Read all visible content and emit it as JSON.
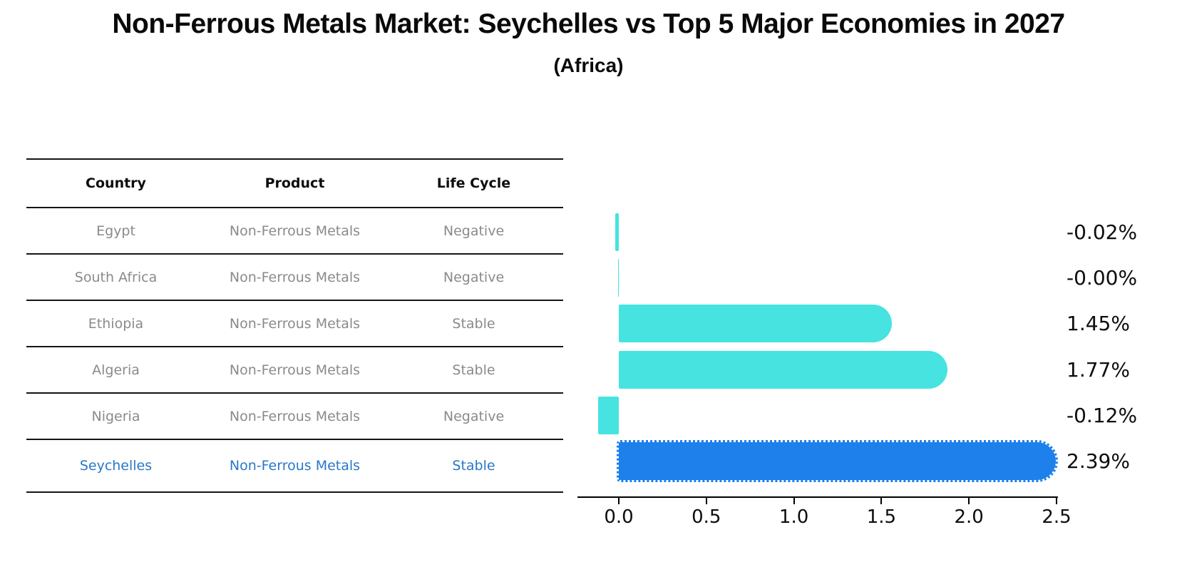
{
  "title": "Non-Ferrous Metals Market: Seychelles vs Top 5 Major Economies in 2027",
  "subtitle": "(Africa)",
  "table": {
    "headers": [
      "Country",
      "Product",
      "Life Cycle"
    ],
    "rows": [
      {
        "country": "Egypt",
        "product": "Non-Ferrous Metals",
        "life_cycle": "Negative",
        "highlight": false
      },
      {
        "country": "South Africa",
        "product": "Non-Ferrous Metals",
        "life_cycle": "Negative",
        "highlight": false
      },
      {
        "country": "Ethiopia",
        "product": "Non-Ferrous Metals",
        "life_cycle": "Stable",
        "highlight": false
      },
      {
        "country": "Algeria",
        "product": "Non-Ferrous Metals",
        "life_cycle": "Stable",
        "highlight": false
      },
      {
        "country": "Nigeria",
        "product": "Non-Ferrous Metals",
        "life_cycle": "Negative",
        "highlight": false
      },
      {
        "country": "Seychelles",
        "product": "Non-Ferrous Metals",
        "life_cycle": "Stable",
        "highlight": true
      }
    ]
  },
  "chart_data": {
    "type": "bar",
    "orientation": "horizontal",
    "categories": [
      "Egypt",
      "South Africa",
      "Ethiopia",
      "Algeria",
      "Nigeria",
      "Seychelles"
    ],
    "values": [
      -0.02,
      -0.0,
      1.45,
      1.77,
      -0.12,
      2.39
    ],
    "value_labels": [
      "-0.02%",
      "-0.00%",
      "1.45%",
      "1.77%",
      "-0.12%",
      "2.39%"
    ],
    "highlight_index": 5,
    "xticks": [
      "0.0",
      "0.5",
      "1.0",
      "1.5",
      "2.0",
      "2.5"
    ],
    "xlim": [
      -0.25,
      2.5
    ],
    "grid": false,
    "legend": false,
    "bar_color": "#46e3e0",
    "highlight_color": "#1e80ea",
    "highlight_text_color": "#2878c8"
  }
}
